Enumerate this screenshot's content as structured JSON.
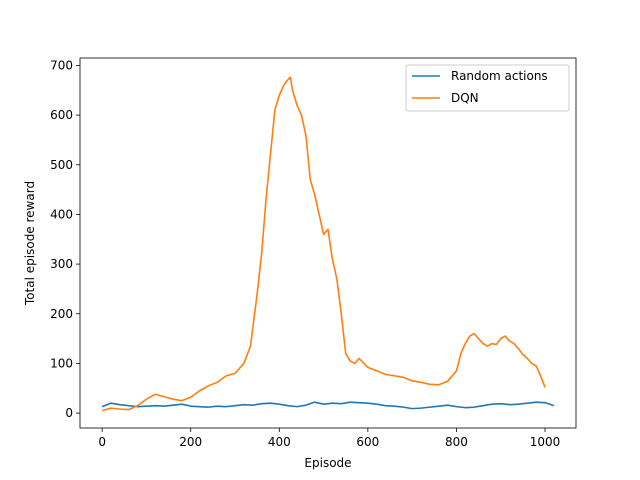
{
  "chart_data": {
    "type": "line",
    "title": "",
    "xlabel": "Episode",
    "ylabel": "Total episode reward",
    "xlim": [
      -50,
      1070
    ],
    "ylim": [
      -30,
      715
    ],
    "xticks": [
      0,
      200,
      400,
      600,
      800,
      1000
    ],
    "yticks": [
      0,
      100,
      200,
      300,
      400,
      500,
      600,
      700
    ],
    "grid": false,
    "legend_position": "upper-right",
    "series": [
      {
        "name": "Random actions",
        "color": "#1f77b4",
        "x": [
          0,
          20,
          40,
          60,
          80,
          100,
          120,
          140,
          160,
          180,
          200,
          220,
          240,
          260,
          280,
          300,
          320,
          340,
          360,
          380,
          400,
          420,
          440,
          460,
          480,
          500,
          520,
          540,
          560,
          580,
          600,
          620,
          640,
          660,
          680,
          700,
          720,
          740,
          760,
          780,
          800,
          820,
          840,
          860,
          880,
          900,
          920,
          940,
          960,
          980,
          1000,
          1020
        ],
        "y": [
          13,
          20,
          17,
          15,
          13,
          14,
          15,
          14,
          16,
          18,
          14,
          13,
          12,
          14,
          13,
          15,
          17,
          16,
          19,
          20,
          18,
          15,
          13,
          16,
          22,
          18,
          20,
          19,
          22,
          21,
          20,
          18,
          15,
          14,
          12,
          9,
          10,
          12,
          14,
          16,
          13,
          11,
          12,
          15,
          18,
          19,
          17,
          18,
          20,
          22,
          21,
          15
        ]
      },
      {
        "name": "DQN",
        "color": "#ff7f0e",
        "x": [
          0,
          20,
          40,
          60,
          80,
          100,
          120,
          140,
          160,
          180,
          200,
          220,
          240,
          260,
          280,
          300,
          320,
          335,
          350,
          360,
          370,
          380,
          390,
          400,
          410,
          420,
          425,
          430,
          440,
          450,
          460,
          470,
          480,
          490,
          500,
          510,
          520,
          530,
          540,
          550,
          560,
          570,
          580,
          600,
          620,
          640,
          660,
          680,
          700,
          720,
          740,
          760,
          780,
          800,
          810,
          820,
          830,
          840,
          850,
          860,
          870,
          880,
          890,
          900,
          910,
          920,
          930,
          940,
          950,
          960,
          970,
          980,
          990,
          1000
        ],
        "y": [
          5,
          10,
          8,
          7,
          15,
          28,
          38,
          33,
          28,
          25,
          32,
          45,
          55,
          62,
          75,
          80,
          100,
          135,
          240,
          320,
          430,
          520,
          610,
          640,
          660,
          672,
          676,
          650,
          620,
          600,
          560,
          470,
          440,
          400,
          360,
          370,
          310,
          270,
          200,
          120,
          105,
          100,
          110,
          92,
          85,
          78,
          75,
          72,
          65,
          62,
          58,
          57,
          64,
          85,
          120,
          140,
          155,
          160,
          150,
          140,
          135,
          140,
          138,
          150,
          155,
          145,
          140,
          130,
          118,
          110,
          100,
          95,
          75,
          52
        ]
      }
    ]
  }
}
